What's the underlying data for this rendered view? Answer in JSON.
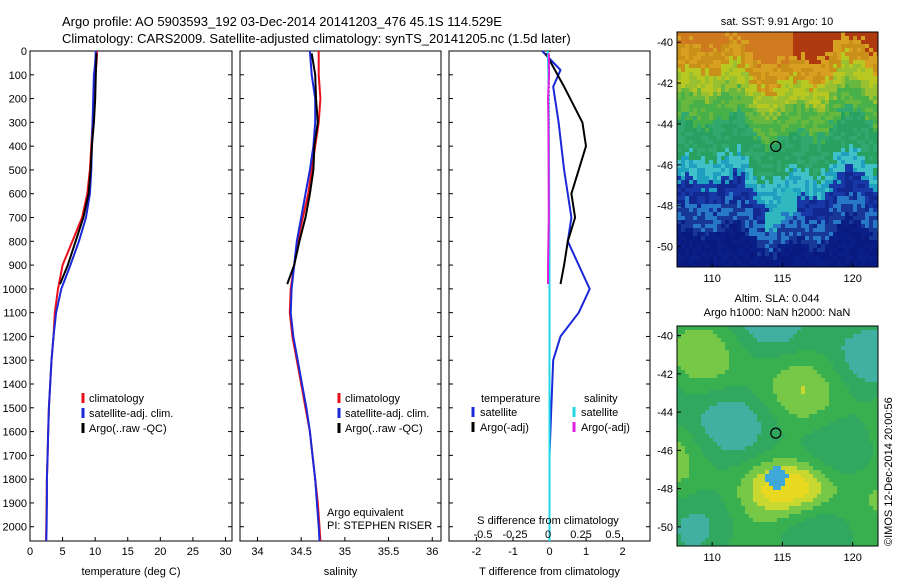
{
  "title": {
    "line1": "Argo profile: AO 5903593_192 03-Dec-2014 20141203_476 45.1S 114.529E",
    "line2": "Climatology: CARS2009. Satellite-adjusted climatology: synTS_20141205.nc (1.5d later)"
  },
  "side_label": "©IMOS 12-Dec-2014 20:00:56",
  "colors": {
    "climatology": "#e8101a",
    "satellite": "#1a28d8",
    "argo": "#000000",
    "satellite_salinity": "#20d8e8",
    "argo_salinity": "#e020e0"
  },
  "chart_data": [
    {
      "id": "temperature",
      "type": "line",
      "xlabel": "temperature (deg C)",
      "xlim": [
        0,
        31
      ],
      "ylim": [
        2060,
        0
      ],
      "xticks": [
        0,
        5,
        10,
        15,
        20,
        25,
        30
      ],
      "yticks": [
        0,
        100,
        200,
        300,
        400,
        500,
        600,
        700,
        800,
        900,
        1000,
        1100,
        1200,
        1300,
        1400,
        1500,
        1600,
        1700,
        1800,
        1900,
        2000
      ],
      "legend": [
        "climatology",
        "satellite-adj. clim.",
        "Argo(..raw -QC)"
      ],
      "legend_position": "lower-right",
      "series": [
        {
          "name": "climatology",
          "color_key": "climatology",
          "points": [
            [
              10.3,
              0
            ],
            [
              10.2,
              50
            ],
            [
              10.0,
              100
            ],
            [
              9.8,
              200
            ],
            [
              9.6,
              300
            ],
            [
              9.4,
              400
            ],
            [
              9.2,
              500
            ],
            [
              8.8,
              600
            ],
            [
              8.0,
              700
            ],
            [
              6.5,
              800
            ],
            [
              5.0,
              900
            ],
            [
              4.3,
              1000
            ],
            [
              3.8,
              1100
            ],
            [
              3.6,
              1200
            ],
            [
              3.3,
              1300
            ],
            [
              3.1,
              1400
            ],
            [
              2.9,
              1500
            ],
            [
              2.8,
              1600
            ],
            [
              2.7,
              1700
            ],
            [
              2.6,
              1800
            ],
            [
              2.55,
              1900
            ],
            [
              2.5,
              2000
            ],
            [
              2.45,
              2060
            ]
          ]
        },
        {
          "name": "satellite-adj. clim.",
          "color_key": "satellite",
          "points": [
            [
              10.1,
              0
            ],
            [
              10.0,
              50
            ],
            [
              9.8,
              100
            ],
            [
              9.7,
              200
            ],
            [
              9.6,
              300
            ],
            [
              9.5,
              400
            ],
            [
              9.4,
              500
            ],
            [
              9.2,
              600
            ],
            [
              8.6,
              700
            ],
            [
              7.5,
              800
            ],
            [
              6.2,
              900
            ],
            [
              4.8,
              1000
            ],
            [
              4.0,
              1100
            ],
            [
              3.6,
              1200
            ],
            [
              3.3,
              1300
            ],
            [
              3.1,
              1400
            ],
            [
              2.9,
              1500
            ],
            [
              2.8,
              1600
            ],
            [
              2.7,
              1700
            ],
            [
              2.6,
              1800
            ],
            [
              2.6,
              1900
            ],
            [
              2.55,
              2000
            ],
            [
              2.5,
              2060
            ]
          ]
        },
        {
          "name": "Argo(..raw -QC)",
          "color_key": "argo",
          "points": [
            [
              10.2,
              10
            ],
            [
              10.1,
              100
            ],
            [
              10.0,
              200
            ],
            [
              9.8,
              300
            ],
            [
              9.5,
              400
            ],
            [
              9.3,
              500
            ],
            [
              9.0,
              600
            ],
            [
              8.2,
              700
            ],
            [
              7.0,
              800
            ],
            [
              5.8,
              900
            ],
            [
              4.6,
              980
            ]
          ]
        }
      ],
      "annotations": []
    },
    {
      "id": "salinity",
      "type": "line",
      "xlabel": "salinity",
      "xlim": [
        33.8,
        36.1
      ],
      "ylim": [
        2060,
        0
      ],
      "xticks": [
        34,
        34.5,
        35,
        35.5,
        36
      ],
      "legend": [
        "climatology",
        "satellite-adj. clim.",
        "Argo(..raw -QC)"
      ],
      "legend_position": "lower-right",
      "series": [
        {
          "name": "climatology",
          "color_key": "climatology",
          "points": [
            [
              34.7,
              0
            ],
            [
              34.7,
              100
            ],
            [
              34.72,
              200
            ],
            [
              34.7,
              300
            ],
            [
              34.66,
              400
            ],
            [
              34.62,
              500
            ],
            [
              34.58,
              600
            ],
            [
              34.52,
              700
            ],
            [
              34.46,
              800
            ],
            [
              34.42,
              900
            ],
            [
              34.38,
              1000
            ],
            [
              34.37,
              1100
            ],
            [
              34.4,
              1200
            ],
            [
              34.45,
              1300
            ],
            [
              34.5,
              1400
            ],
            [
              34.55,
              1500
            ],
            [
              34.6,
              1600
            ],
            [
              34.63,
              1700
            ],
            [
              34.66,
              1800
            ],
            [
              34.69,
              1900
            ],
            [
              34.71,
              2000
            ],
            [
              34.72,
              2060
            ]
          ]
        },
        {
          "name": "satellite-adj. clim.",
          "color_key": "satellite",
          "points": [
            [
              34.6,
              0
            ],
            [
              34.62,
              100
            ],
            [
              34.66,
              200
            ],
            [
              34.66,
              300
            ],
            [
              34.64,
              400
            ],
            [
              34.6,
              500
            ],
            [
              34.55,
              600
            ],
            [
              34.5,
              700
            ],
            [
              34.45,
              800
            ],
            [
              34.42,
              900
            ],
            [
              34.39,
              1000
            ],
            [
              34.38,
              1100
            ],
            [
              34.41,
              1200
            ],
            [
              34.46,
              1300
            ],
            [
              34.51,
              1400
            ],
            [
              34.56,
              1500
            ],
            [
              34.6,
              1600
            ],
            [
              34.63,
              1700
            ],
            [
              34.66,
              1800
            ],
            [
              34.68,
              1900
            ],
            [
              34.7,
              2000
            ],
            [
              34.71,
              2060
            ]
          ]
        },
        {
          "name": "Argo(..raw -QC)",
          "color_key": "argo",
          "points": [
            [
              34.62,
              10
            ],
            [
              34.66,
              100
            ],
            [
              34.67,
              200
            ],
            [
              34.69,
              300
            ],
            [
              34.65,
              400
            ],
            [
              34.64,
              500
            ],
            [
              34.6,
              600
            ],
            [
              34.55,
              700
            ],
            [
              34.48,
              800
            ],
            [
              34.42,
              900
            ],
            [
              34.34,
              980
            ]
          ]
        }
      ],
      "annotations": [
        "Argo equivalent",
        "PI: STEPHEN RISER"
      ]
    },
    {
      "id": "differences",
      "type": "line",
      "xlabel": "T difference from climatology",
      "xlabel_top": "S difference from climatology",
      "xlim": [
        -2.75,
        2.75
      ],
      "ylim": [
        2060,
        0
      ],
      "xticks": [
        -2,
        -1,
        0,
        1,
        2
      ],
      "xticks_top": [
        "-0.5",
        "-0.25",
        "0",
        "0.25",
        "0.5"
      ],
      "legend": {
        "temperature_header": "temperature",
        "salinity_header": "salinity",
        "temperature": [
          "satellite",
          "Argo(-adj)"
        ],
        "salinity": [
          "satellite",
          "Argo(-adj)"
        ]
      },
      "legend_position": "lower-right",
      "series": [
        {
          "name": "satellite",
          "quantity": "temperature",
          "color_key": "satellite",
          "points": [
            [
              -0.2,
              0
            ],
            [
              0.3,
              80
            ],
            [
              0.1,
              150
            ],
            [
              0.25,
              300
            ],
            [
              0.4,
              500
            ],
            [
              0.6,
              700
            ],
            [
              0.5,
              800
            ],
            [
              1.1,
              1000
            ],
            [
              0.8,
              1100
            ],
            [
              0.3,
              1200
            ],
            [
              0.1,
              1300
            ],
            [
              0.05,
              1500
            ],
            [
              0.0,
              1700
            ],
            [
              0.0,
              2060
            ]
          ]
        },
        {
          "name": "Argo(-adj)",
          "quantity": "temperature",
          "color_key": "argo",
          "points": [
            [
              -0.1,
              10
            ],
            [
              0.4,
              150
            ],
            [
              0.9,
              300
            ],
            [
              1.0,
              400
            ],
            [
              0.8,
              500
            ],
            [
              0.6,
              600
            ],
            [
              0.7,
              700
            ],
            [
              0.5,
              800
            ],
            [
              0.4,
              900
            ],
            [
              0.3,
              980
            ]
          ]
        },
        {
          "name": "satellite",
          "quantity": "salinity",
          "color_key": "satellite_salinity",
          "points": [
            [
              -0.05,
              0
            ],
            [
              -0.03,
              100
            ],
            [
              -0.02,
              300
            ],
            [
              -0.01,
              500
            ],
            [
              0.0,
              800
            ],
            [
              0.0,
              2060
            ]
          ]
        },
        {
          "name": "Argo(-adj)",
          "quantity": "salinity",
          "color_key": "argo_salinity",
          "points": [
            [
              -0.02,
              10
            ],
            [
              -0.01,
              100
            ],
            [
              -0.04,
              200
            ],
            [
              -0.03,
              300
            ],
            [
              -0.02,
              700
            ],
            [
              -0.03,
              800
            ],
            [
              -0.04,
              900
            ],
            [
              -0.04,
              980
            ]
          ]
        }
      ],
      "annotations": []
    },
    {
      "id": "sst-map",
      "type": "heatmap",
      "title": "sat. SST: 9.91  Argo: 10",
      "xticks": [
        110,
        115,
        120
      ],
      "yticks": [
        -40,
        -42,
        -44,
        -46,
        -48,
        -50
      ],
      "xlim": [
        107.5,
        121.8
      ],
      "ylim": [
        -51.0,
        -39.5
      ],
      "marker": {
        "lon": 114.53,
        "lat": -45.1
      }
    },
    {
      "id": "sla-map",
      "type": "heatmap",
      "title": "Altim. SLA: 0.044",
      "subtitle": "Argo h1000: NaN h2000: NaN",
      "xticks": [
        110,
        115,
        120
      ],
      "yticks": [
        -40,
        -42,
        -44,
        -46,
        -48,
        -50
      ],
      "xlim": [
        107.5,
        121.8
      ],
      "ylim": [
        -51.0,
        -39.5
      ],
      "marker": {
        "lon": 114.53,
        "lat": -45.1
      }
    }
  ]
}
